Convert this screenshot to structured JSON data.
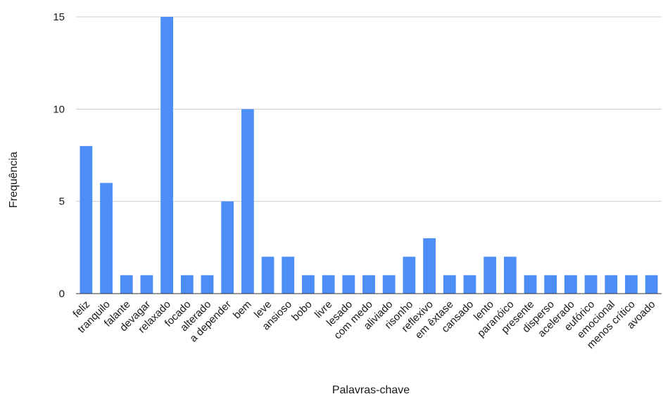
{
  "chart_data": {
    "type": "bar",
    "title": "",
    "xlabel": "Palavras-chave",
    "ylabel": "Frequência",
    "ylim": [
      0,
      15
    ],
    "yticks": [
      0,
      5,
      10,
      15
    ],
    "grid": true,
    "bar_color": "#4d8df6",
    "categories": [
      "feliz",
      "tranquilo",
      "falante",
      "devagar",
      "relaxado",
      "focado",
      "alterado",
      "a depender",
      "bem",
      "leve",
      "ansioso",
      "bobo",
      "livre",
      "lesado",
      "com medo",
      "aliviado",
      "risonho",
      "reflexivo",
      "em êxtase",
      "cansado",
      "lento",
      "paranóico",
      "presente",
      "disperso",
      "acelerado",
      "eufórico",
      "emocional",
      "menos crítico",
      "avoado"
    ],
    "values": [
      8,
      6,
      1,
      1,
      15,
      1,
      1,
      5,
      10,
      2,
      2,
      1,
      1,
      1,
      1,
      1,
      2,
      3,
      1,
      1,
      2,
      2,
      1,
      1,
      1,
      1,
      1,
      1,
      1
    ]
  }
}
